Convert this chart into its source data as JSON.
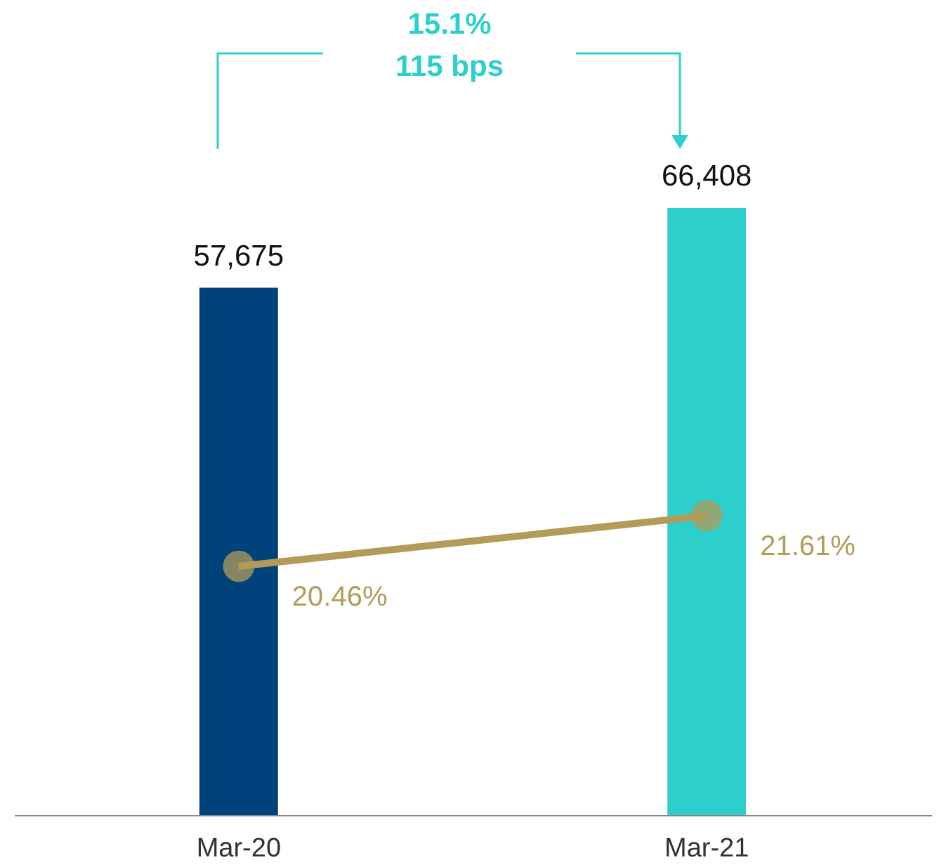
{
  "chart_data": {
    "type": "bar",
    "categories": [
      "Mar-20",
      "Mar-21"
    ],
    "series": [
      {
        "colors": [
          "#00427a",
          "#2ccfcb"
        ],
        "values": [
          57675,
          66408
        ],
        "value_labels": [
          "57,675",
          "66,408"
        ]
      },
      {
        "type": "line",
        "axis": "y2",
        "color": "#b39b5a",
        "values": [
          20.46,
          21.61
        ],
        "value_labels": [
          "20.46%",
          "21.61%"
        ],
        "marker": "circle",
        "line_style": "solid"
      }
    ],
    "tick_labels": "x",
    "annotations": [
      "15.1%",
      "115 bps"
    ]
  }
}
